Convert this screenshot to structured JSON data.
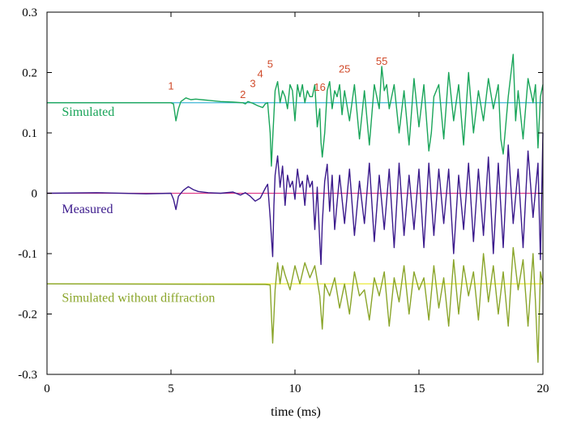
{
  "chart_data": {
    "type": "line",
    "title": "",
    "xlabel": "time (ms)",
    "ylabel": "",
    "xlim": [
      0,
      20
    ],
    "ylim": [
      -0.3,
      0.3
    ],
    "x_ticks": [
      0,
      5,
      10,
      15,
      20
    ],
    "x_tick_labels": [
      "0",
      "5",
      "10",
      "15",
      "20"
    ],
    "y_ticks": [
      0.3,
      0.2,
      0.1,
      0,
      -0.1,
      -0.2,
      -0.3
    ],
    "y_tick_labels": [
      "0.3",
      "0.2",
      "0.1",
      "0",
      "-0.1",
      "-0.2",
      "-0.3"
    ],
    "grid": false,
    "series": [
      {
        "name": "Simulated",
        "color": "#1aa55a",
        "baseline": 0.15,
        "baseline_color": "#3fb6d8",
        "x": [
          0,
          5.0,
          5.1,
          5.2,
          5.3,
          5.4,
          5.6,
          5.8,
          6.0,
          6.5,
          7.0,
          7.5,
          7.9,
          8.0,
          8.1,
          8.3,
          8.5,
          8.7,
          8.8,
          8.9,
          9.0,
          9.05,
          9.1,
          9.2,
          9.3,
          9.4,
          9.5,
          9.6,
          9.7,
          9.8,
          9.9,
          10.0,
          10.1,
          10.2,
          10.3,
          10.4,
          10.5,
          10.6,
          10.7,
          10.8,
          10.9,
          11.0,
          11.05,
          11.1,
          11.2,
          11.3,
          11.4,
          11.5,
          11.6,
          11.7,
          11.8,
          11.9,
          12.0,
          12.2,
          12.4,
          12.6,
          12.8,
          13.0,
          13.2,
          13.4,
          13.5,
          13.6,
          13.7,
          13.8,
          14.0,
          14.2,
          14.4,
          14.6,
          14.8,
          15.0,
          15.2,
          15.4,
          15.5,
          15.6,
          15.8,
          16.0,
          16.2,
          16.4,
          16.6,
          16.8,
          17.0,
          17.2,
          17.4,
          17.6,
          17.8,
          18.0,
          18.2,
          18.3,
          18.4,
          18.6,
          18.8,
          18.9,
          19.0,
          19.2,
          19.4,
          19.6,
          19.7,
          19.8,
          19.9,
          20.0
        ],
        "y": [
          0.15,
          0.15,
          0.148,
          0.12,
          0.14,
          0.152,
          0.158,
          0.155,
          0.156,
          0.154,
          0.152,
          0.151,
          0.15,
          0.148,
          0.152,
          0.149,
          0.145,
          0.142,
          0.148,
          0.15,
          0.1,
          0.045,
          0.09,
          0.17,
          0.185,
          0.15,
          0.17,
          0.16,
          0.14,
          0.18,
          0.17,
          0.12,
          0.18,
          0.16,
          0.18,
          0.15,
          0.17,
          0.16,
          0.16,
          0.18,
          0.11,
          0.14,
          0.085,
          0.06,
          0.1,
          0.17,
          0.185,
          0.14,
          0.17,
          0.16,
          0.18,
          0.13,
          0.17,
          0.12,
          0.18,
          0.09,
          0.17,
          0.08,
          0.18,
          0.14,
          0.21,
          0.17,
          0.18,
          0.14,
          0.18,
          0.1,
          0.17,
          0.08,
          0.19,
          0.11,
          0.18,
          0.07,
          0.1,
          0.16,
          0.18,
          0.09,
          0.2,
          0.12,
          0.18,
          0.08,
          0.2,
          0.1,
          0.17,
          0.12,
          0.19,
          0.14,
          0.18,
          0.09,
          0.065,
          0.16,
          0.23,
          0.12,
          0.17,
          0.09,
          0.19,
          0.15,
          0.18,
          0.075,
          0.16,
          0.18
        ]
      },
      {
        "name": "Measured",
        "color": "#3b1a8c",
        "baseline": 0,
        "baseline_color": "#e0408a",
        "x": [
          0,
          2,
          4,
          5.0,
          5.1,
          5.2,
          5.3,
          5.5,
          5.7,
          5.9,
          6.1,
          6.5,
          7.0,
          7.5,
          7.8,
          8.0,
          8.2,
          8.4,
          8.6,
          8.8,
          8.9,
          9.0,
          9.1,
          9.15,
          9.2,
          9.3,
          9.4,
          9.5,
          9.6,
          9.7,
          9.8,
          9.9,
          10.0,
          10.1,
          10.2,
          10.3,
          10.4,
          10.5,
          10.6,
          10.7,
          10.8,
          10.9,
          11.0,
          11.05,
          11.1,
          11.2,
          11.3,
          11.4,
          11.5,
          11.6,
          11.8,
          12.0,
          12.2,
          12.4,
          12.6,
          12.8,
          13.0,
          13.2,
          13.4,
          13.6,
          13.8,
          14.0,
          14.2,
          14.4,
          14.6,
          14.8,
          15.0,
          15.2,
          15.4,
          15.6,
          15.8,
          16.0,
          16.2,
          16.4,
          16.6,
          16.8,
          17.0,
          17.2,
          17.4,
          17.6,
          17.8,
          18.0,
          18.2,
          18.4,
          18.6,
          18.8,
          19.0,
          19.2,
          19.4,
          19.6,
          19.8,
          19.9,
          20.0
        ],
        "y": [
          0,
          0.001,
          -0.001,
          0,
          -0.01,
          -0.027,
          -0.005,
          0.005,
          0.011,
          0.006,
          0.003,
          0.001,
          0,
          0.002,
          -0.003,
          0.001,
          -0.005,
          -0.013,
          -0.008,
          0.008,
          0.015,
          -0.04,
          -0.105,
          -0.02,
          0.03,
          0.062,
          0.01,
          0.045,
          -0.02,
          0.03,
          0.01,
          0.02,
          -0.01,
          0.04,
          0.01,
          0.02,
          -0.02,
          0.03,
          0.01,
          0.02,
          -0.06,
          0.01,
          -0.08,
          -0.118,
          -0.05,
          0.02,
          0.048,
          -0.03,
          0.03,
          -0.06,
          0.03,
          -0.05,
          0.04,
          -0.07,
          0.02,
          -0.05,
          0.05,
          -0.08,
          0.03,
          -0.06,
          0.04,
          -0.09,
          0.05,
          -0.07,
          0.03,
          -0.06,
          0.04,
          -0.09,
          0.05,
          -0.07,
          0.04,
          -0.05,
          0.04,
          -0.1,
          0.03,
          -0.06,
          0.05,
          -0.08,
          0.04,
          -0.07,
          0.06,
          -0.1,
          0.05,
          -0.09,
          0.08,
          -0.05,
          0.04,
          -0.09,
          0.07,
          -0.04,
          0.05,
          -0.11,
          0.1
        ]
      },
      {
        "name": "Simulated without diffraction",
        "color": "#8aa52a",
        "baseline": -0.15,
        "baseline_color": "#eaea3a",
        "x": [
          0,
          8.8,
          9.0,
          9.05,
          9.1,
          9.2,
          9.3,
          9.4,
          9.5,
          9.6,
          9.8,
          10.0,
          10.2,
          10.4,
          10.6,
          10.8,
          11.0,
          11.1,
          11.2,
          11.4,
          11.6,
          11.8,
          12.0,
          12.2,
          12.4,
          12.6,
          12.8,
          13.0,
          13.2,
          13.4,
          13.6,
          13.8,
          14.0,
          14.2,
          14.4,
          14.6,
          14.8,
          15.0,
          15.2,
          15.4,
          15.6,
          15.8,
          16.0,
          16.2,
          16.4,
          16.6,
          16.8,
          17.0,
          17.2,
          17.4,
          17.6,
          17.8,
          18.0,
          18.2,
          18.4,
          18.6,
          18.8,
          19.0,
          19.2,
          19.4,
          19.6,
          19.7,
          19.8,
          19.9,
          20.0
        ],
        "y": [
          -0.15,
          -0.151,
          -0.152,
          -0.2,
          -0.248,
          -0.16,
          -0.115,
          -0.15,
          -0.12,
          -0.135,
          -0.16,
          -0.12,
          -0.15,
          -0.115,
          -0.14,
          -0.12,
          -0.17,
          -0.225,
          -0.15,
          -0.17,
          -0.14,
          -0.19,
          -0.15,
          -0.2,
          -0.13,
          -0.17,
          -0.16,
          -0.21,
          -0.14,
          -0.17,
          -0.13,
          -0.22,
          -0.14,
          -0.18,
          -0.12,
          -0.2,
          -0.13,
          -0.16,
          -0.14,
          -0.21,
          -0.12,
          -0.19,
          -0.14,
          -0.22,
          -0.11,
          -0.2,
          -0.12,
          -0.17,
          -0.13,
          -0.21,
          -0.1,
          -0.18,
          -0.12,
          -0.2,
          -0.13,
          -0.22,
          -0.09,
          -0.16,
          -0.11,
          -0.22,
          -0.1,
          -0.18,
          -0.28,
          -0.13,
          -0.15
        ]
      }
    ],
    "series_labels": [
      {
        "text": "Simulated",
        "x": 0.6,
        "y": 0.128,
        "color": "#1aa55a"
      },
      {
        "text": "Measured",
        "x": 0.6,
        "y": -0.033,
        "color": "#3b1a8c"
      },
      {
        "text": "Simulated without diffraction",
        "x": 0.6,
        "y": -0.18,
        "color": "#8aa52a"
      }
    ],
    "annotations": [
      {
        "text": "1",
        "x": 5.0,
        "y": 0.172
      },
      {
        "text": "2",
        "x": 7.9,
        "y": 0.158
      },
      {
        "text": "3",
        "x": 8.3,
        "y": 0.176
      },
      {
        "text": "4",
        "x": 8.6,
        "y": 0.192
      },
      {
        "text": "5",
        "x": 9.0,
        "y": 0.208
      },
      {
        "text": "16",
        "x": 11.0,
        "y": 0.17
      },
      {
        "text": "25",
        "x": 12.0,
        "y": 0.2
      },
      {
        "text": "55",
        "x": 13.5,
        "y": 0.213
      }
    ],
    "annotation_color": "#d04a2a"
  }
}
